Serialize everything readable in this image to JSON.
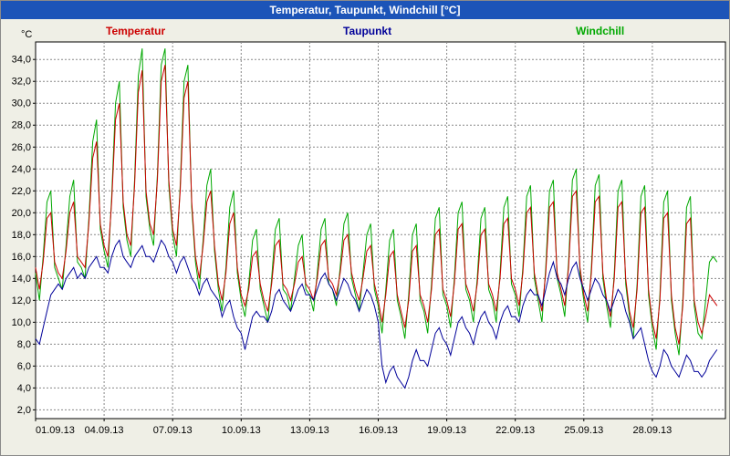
{
  "window": {
    "title": "Temperatur, Taupunkt, Windchill [°C]"
  },
  "legend": [
    {
      "label": "Temperatur",
      "color": "#cc0000"
    },
    {
      "label": "Taupunkt",
      "color": "#000099"
    },
    {
      "label": "Windchill",
      "color": "#00a800"
    }
  ],
  "axes": {
    "y_unit": "°C",
    "grid_color": "#888888",
    "border_color": "#000000",
    "plot_background": "#ffffff"
  },
  "chart_data": {
    "type": "line",
    "title": "Temperatur, Taupunkt, Windchill [°C]",
    "x_description": "days since 01.09.13 00:00, values every 4 hours",
    "x_start": 0,
    "interval_days": 0.1666667,
    "xlim": [
      0,
      30.2
    ],
    "ylim": [
      1.2,
      35.6
    ],
    "grid": true,
    "y_ticks": [
      {
        "v": 34,
        "label": "34,0"
      },
      {
        "v": 32,
        "label": "32,0"
      },
      {
        "v": 30,
        "label": "30,0"
      },
      {
        "v": 28,
        "label": "28,0"
      },
      {
        "v": 26,
        "label": "26,0"
      },
      {
        "v": 24,
        "label": "24,0"
      },
      {
        "v": 22,
        "label": "22,0"
      },
      {
        "v": 20,
        "label": "20,0"
      },
      {
        "v": 18,
        "label": "18,0"
      },
      {
        "v": 16,
        "label": "16,0"
      },
      {
        "v": 14,
        "label": "14,0"
      },
      {
        "v": 12,
        "label": "12,0"
      },
      {
        "v": 10,
        "label": "10,0"
      },
      {
        "v": 8,
        "label": "8,0"
      },
      {
        "v": 6,
        "label": "6,0"
      },
      {
        "v": 4,
        "label": "4,0"
      },
      {
        "v": 2,
        "label": "2,0"
      }
    ],
    "x_ticks": [
      {
        "day": 0,
        "label": "01.09.13"
      },
      {
        "day": 3,
        "label": "04.09.13"
      },
      {
        "day": 6,
        "label": "07.09.13"
      },
      {
        "day": 9,
        "label": "10.09.13"
      },
      {
        "day": 12,
        "label": "13.09.13"
      },
      {
        "day": 15,
        "label": "16.09.13"
      },
      {
        "day": 18,
        "label": "19.09.13"
      },
      {
        "day": 21,
        "label": "22.09.13"
      },
      {
        "day": 24,
        "label": "25.09.13"
      },
      {
        "day": 27,
        "label": "28.09.13"
      }
    ],
    "series": [
      {
        "name": "Windchill",
        "color": "#00a800",
        "values": [
          14.5,
          12,
          16,
          21,
          22,
          15,
          14,
          13,
          17,
          21.5,
          23,
          15.5,
          15,
          14,
          19.5,
          26.5,
          28.5,
          18.5,
          16.5,
          15,
          21.5,
          30,
          32,
          20.5,
          17.5,
          16,
          23,
          32.5,
          35,
          21.5,
          18.5,
          17,
          23.5,
          33.5,
          35,
          22.5,
          18,
          16,
          22.5,
          32,
          33.5,
          20.5,
          15.5,
          13,
          17.5,
          22.5,
          24,
          16.5,
          13,
          11,
          15,
          20.5,
          22,
          14.5,
          12,
          10.5,
          13.5,
          17.5,
          18.5,
          13,
          11.5,
          10,
          14,
          18.5,
          19.5,
          13,
          12.5,
          11,
          14,
          17,
          18,
          13,
          12.5,
          11,
          14.5,
          18.5,
          19.5,
          13.5,
          13,
          11.5,
          15,
          19,
          20,
          14,
          12.5,
          11,
          14.5,
          18,
          19,
          13,
          11.5,
          9,
          13,
          17.5,
          18.5,
          12,
          10.5,
          8.5,
          12.5,
          18,
          19,
          12,
          11,
          9,
          13.5,
          19.5,
          20.5,
          12.5,
          11.5,
          9.5,
          14,
          20,
          21,
          13,
          12,
          10,
          14,
          19.5,
          20.5,
          13,
          12,
          10,
          14.5,
          20.5,
          21.5,
          13.5,
          12.5,
          10.5,
          15,
          21.5,
          22.5,
          14,
          12,
          10,
          15,
          22,
          23,
          14,
          12.5,
          10.5,
          15.5,
          23,
          24,
          14.5,
          12,
          10,
          15,
          22.5,
          23.5,
          14,
          11.5,
          9.5,
          14.5,
          22,
          23,
          13.5,
          10.5,
          8.5,
          13.5,
          21.5,
          22.5,
          12.5,
          9.5,
          7.5,
          12.5,
          21,
          22,
          12,
          9,
          7,
          12,
          20.5,
          21.5,
          11.5,
          9,
          8.5,
          12,
          15.5,
          16,
          15.5
        ]
      },
      {
        "name": "Temperatur",
        "color": "#cc0000",
        "values": [
          15,
          13,
          15.5,
          19.5,
          20,
          15.5,
          14.5,
          14,
          16.5,
          20,
          21,
          16,
          15.5,
          15,
          19,
          25,
          26.5,
          19,
          17,
          16,
          21,
          28.5,
          30,
          21,
          18,
          17,
          22.5,
          31,
          33,
          22,
          19,
          18,
          23,
          32,
          33.5,
          23,
          18.5,
          17,
          22,
          30.5,
          32,
          21,
          16,
          14,
          17,
          21,
          22,
          17,
          13.5,
          12,
          14.5,
          19,
          20,
          15,
          12.5,
          11.5,
          13,
          16,
          16.5,
          13.5,
          12,
          11,
          13.5,
          17,
          17.5,
          13.5,
          13,
          12,
          13.5,
          15.5,
          16,
          13.5,
          13,
          12,
          14,
          17,
          17.5,
          14,
          13.5,
          12.5,
          14.5,
          17.5,
          18,
          14.5,
          13,
          12,
          14,
          16.5,
          17,
          13.5,
          12,
          10,
          12.5,
          16,
          16.5,
          12.5,
          11,
          9.5,
          12,
          16.5,
          17,
          12.5,
          11.5,
          10,
          13,
          18,
          18.5,
          13,
          12,
          10.5,
          13.5,
          18.5,
          19,
          13.5,
          12.5,
          11,
          13.5,
          18,
          18.5,
          13.5,
          12.5,
          11,
          14,
          19,
          19.5,
          14,
          13,
          11.5,
          14.5,
          20,
          20.5,
          14.5,
          12.5,
          11,
          14.5,
          20.5,
          21,
          14.5,
          13,
          11.5,
          15,
          21.5,
          22,
          15,
          12.5,
          11,
          14.5,
          21,
          21.5,
          14.5,
          12,
          10.5,
          14,
          20.5,
          21,
          14,
          11,
          9.5,
          13,
          20,
          20.5,
          13,
          10,
          8.5,
          12,
          19.5,
          20,
          12.5,
          9.5,
          8,
          11.5,
          19,
          19.5,
          12,
          10,
          9,
          10.5,
          12.5,
          12,
          11.5
        ]
      },
      {
        "name": "Taupunkt",
        "color": "#000099",
        "values": [
          8.5,
          8,
          9.5,
          11,
          12.5,
          13,
          13.5,
          13,
          14,
          14.5,
          15,
          14,
          14.5,
          14,
          15,
          15.5,
          16,
          15,
          15,
          14.5,
          16,
          17,
          17.5,
          16,
          15.5,
          15,
          16,
          16.5,
          17,
          16,
          16,
          15.5,
          16.5,
          17.5,
          17,
          16,
          15.5,
          14.5,
          15.5,
          16,
          15,
          14,
          13.5,
          12.5,
          13.5,
          14,
          13,
          12.5,
          12,
          10.5,
          11.5,
          12,
          10.5,
          9.5,
          9,
          7.5,
          9,
          10.5,
          11,
          10.5,
          10.5,
          10,
          11,
          12.5,
          13,
          12,
          11.5,
          11,
          12,
          13,
          13.5,
          12.5,
          12.5,
          12,
          13,
          14,
          14.5,
          13.5,
          13,
          12,
          13,
          14,
          13.5,
          12.5,
          12,
          11,
          12,
          13,
          12.5,
          11.5,
          10,
          6,
          4.5,
          5.5,
          6,
          5,
          4.5,
          4,
          5,
          6.5,
          7.5,
          6.5,
          6.5,
          6,
          7.5,
          9,
          9.5,
          8.5,
          8,
          7,
          8.5,
          10,
          10.5,
          9.5,
          9,
          8,
          9.5,
          10.5,
          11,
          10,
          9.5,
          8.5,
          10,
          11,
          11.5,
          10.5,
          10.5,
          10,
          11.5,
          12.5,
          13,
          12.5,
          12.5,
          11.5,
          13,
          14.5,
          15.5,
          14,
          13.5,
          12.5,
          14,
          15,
          15.5,
          14,
          13,
          12,
          13,
          14,
          13.5,
          12.5,
          12,
          11,
          12,
          13,
          12.5,
          11,
          10,
          8.5,
          9,
          9.5,
          8,
          6.5,
          5.5,
          5,
          6,
          7.5,
          7,
          6,
          5.5,
          5,
          6,
          7,
          6.5,
          5.5,
          5.5,
          5,
          5.5,
          6.5,
          7,
          7.5
        ]
      }
    ]
  }
}
